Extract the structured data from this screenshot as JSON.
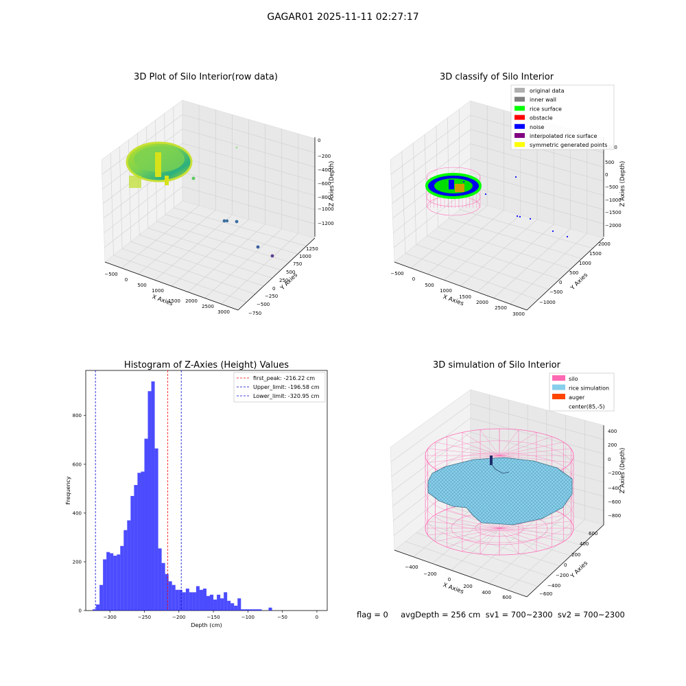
{
  "figure": {
    "suptitle": "GAGAR01 2025-11-11 02:27:17",
    "status_text": "flag = 0     avgDepth = 256 cm  sv1 = 700~2300  sv2 = 700~2300"
  },
  "chart_data": [
    {
      "type": "scatter",
      "projection": "3d",
      "title": "3D Plot of Silo Interior(row data)",
      "xlabel": "X Axies",
      "ylabel": "Y Axies",
      "zlabel": "Z Axies (Depth)",
      "x_ticks": [
        "−500",
        "0",
        "500",
        "1000",
        "1500",
        "2000",
        "2500",
        "3000"
      ],
      "y_ticks": [
        "−750",
        "−500",
        "−250",
        "0",
        "250",
        "500",
        "750",
        "1000",
        "1250"
      ],
      "z_ticks": [
        "0",
        "−200",
        "−400",
        "−600",
        "−800",
        "−1000",
        "−1200"
      ],
      "colormap": "viridis",
      "grid": true,
      "outlier_points": [
        {
          "x": 2300,
          "y": 100,
          "z": -1150
        },
        {
          "x": 2450,
          "y": 150,
          "z": -1180
        },
        {
          "x": 2800,
          "y": -300,
          "z": -1230
        },
        {
          "x": 3000,
          "y": -500,
          "z": -1260
        }
      ]
    },
    {
      "type": "scatter",
      "projection": "3d",
      "title": "3D classify of Silo Interior",
      "xlabel": "X Axies",
      "ylabel": "Y Axies",
      "zlabel": "Z Axies (Depth)",
      "x_ticks": [
        "−500",
        "0",
        "500",
        "1000",
        "1500",
        "2000",
        "2500",
        "3000"
      ],
      "y_ticks": [
        "−1000",
        "−500",
        "0",
        "500",
        "1000",
        "1500",
        "2000"
      ],
      "z_ticks": [
        "1000",
        "500",
        "0",
        "−500",
        "−1000",
        "−1500",
        "−2000"
      ],
      "legend_position": "upper-right",
      "legend": [
        {
          "label": "original data",
          "color": "#b0b0b0"
        },
        {
          "label": "inner wall",
          "color": "#808080"
        },
        {
          "label": "rice surface",
          "color": "#00ff00"
        },
        {
          "label": "obstacle",
          "color": "#ff0000"
        },
        {
          "label": "noise",
          "color": "#0000ff"
        },
        {
          "label": "interpolated rice surface",
          "color": "#800080"
        },
        {
          "label": "symmetric generated points",
          "color": "#ffff00"
        }
      ],
      "grid": true
    },
    {
      "type": "bar",
      "title": "Histogram of Z-Axies (Height) Values",
      "xlabel": "Depth (cm)",
      "ylabel": "Frequency",
      "xlim": [
        -335,
        15
      ],
      "ylim": [
        0,
        985
      ],
      "x_ticks": [
        -300,
        -250,
        -200,
        -150,
        -100,
        -50,
        0
      ],
      "y_ticks": [
        0,
        200,
        400,
        600,
        800
      ],
      "bar_color": "#0000ff",
      "bin_start": -325,
      "bin_width": 5,
      "values": [
        5,
        25,
        105,
        210,
        240,
        235,
        225,
        230,
        265,
        330,
        370,
        470,
        515,
        565,
        570,
        705,
        900,
        940,
        665,
        255,
        195,
        150,
        120,
        105,
        85,
        85,
        75,
        90,
        75,
        75,
        100,
        85,
        90,
        60,
        65,
        45,
        65,
        50,
        75,
        40,
        30,
        20,
        50,
        5,
        5,
        5,
        5,
        5,
        5,
        0,
        0,
        12,
        0
      ],
      "reference_lines": [
        {
          "label": "first_peak: -216.22 cm",
          "x": -216.22,
          "color": "#ff0000"
        },
        {
          "label": "Upper_limit: -196.58 cm",
          "x": -196.58,
          "color": "#0000cc"
        },
        {
          "label": "Lower_limit: -320.95 cm",
          "x": -320.95,
          "color": "#0000cc"
        }
      ],
      "legend_position": "upper-right"
    },
    {
      "type": "surface",
      "projection": "3d",
      "title": "3D simulation of Silo Interior",
      "xlabel": "X Axies",
      "ylabel": "Y Axies",
      "zlabel": "Z Axies (Depth)",
      "x_ticks": [
        "−400",
        "−200",
        "0",
        "200",
        "400",
        "600"
      ],
      "y_ticks": [
        "−600",
        "−400",
        "−200",
        "0",
        "200",
        "400",
        "600"
      ],
      "z_ticks": [
        "400",
        "200",
        "0",
        "−200",
        "−400",
        "−600",
        "−800"
      ],
      "legend_position": "upper-right",
      "legend": [
        {
          "label": "silo",
          "color": "#ff69b4"
        },
        {
          "label": "rice simulation",
          "color": "#87ceeb"
        },
        {
          "label": "auger",
          "color": "#ff4500"
        },
        {
          "label": "center(85,-5)",
          "color": "none"
        }
      ],
      "grid": true
    }
  ]
}
